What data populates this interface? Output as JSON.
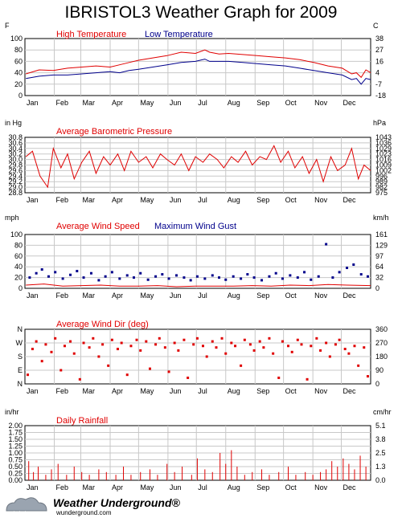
{
  "title": "IBRISTOL3 Weather Graph for 2009",
  "footer": {
    "brand": "Weather Underground",
    "reg": "®",
    "site": "wunderground.com"
  },
  "colors": {
    "red": "#e00000",
    "blue": "#00008b",
    "frame": "#000000",
    "grid": "#c8c8c8"
  },
  "chart_data": [
    {
      "type": "line",
      "left_unit": "F",
      "right_unit": "C",
      "left_ticks": [
        "100",
        "80",
        "60",
        "40",
        "20",
        "0"
      ],
      "right_ticks": [
        "38",
        "27",
        "16",
        "4",
        "-7",
        "-18"
      ],
      "ylim": [
        0,
        100
      ],
      "months": [
        "Jan",
        "Feb",
        "Mar",
        "Apr",
        "May",
        "Jun",
        "Jul",
        "Aug",
        "Sep",
        "Oct",
        "Nov",
        "Dec"
      ],
      "series": [
        {
          "name": "High Temperature",
          "color": "#e00000",
          "x": [
            1,
            15,
            30,
            45,
            60,
            75,
            90,
            100,
            110,
            120,
            135,
            150,
            165,
            180,
            190,
            195,
            205,
            215,
            230,
            245,
            260,
            275,
            290,
            305,
            320,
            335,
            345,
            350,
            355,
            360,
            365
          ],
          "values": [
            38,
            45,
            44,
            48,
            50,
            52,
            50,
            54,
            58,
            62,
            66,
            70,
            76,
            74,
            80,
            76,
            73,
            74,
            72,
            70,
            68,
            66,
            63,
            58,
            52,
            48,
            38,
            40,
            32,
            45,
            40
          ]
        },
        {
          "name": "Low Temperature",
          "color": "#00008b",
          "x": [
            1,
            15,
            30,
            45,
            60,
            75,
            90,
            100,
            110,
            120,
            135,
            150,
            165,
            180,
            190,
            195,
            205,
            215,
            230,
            245,
            260,
            275,
            290,
            305,
            320,
            335,
            345,
            350,
            355,
            360,
            365
          ],
          "values": [
            30,
            34,
            36,
            36,
            38,
            40,
            42,
            40,
            44,
            46,
            50,
            54,
            58,
            60,
            64,
            60,
            60,
            60,
            58,
            56,
            54,
            52,
            48,
            44,
            40,
            36,
            28,
            30,
            20,
            30,
            28
          ]
        }
      ]
    },
    {
      "type": "line",
      "title": "Average Barometric Pressure",
      "left_unit": "in Hg",
      "right_unit": "hPa",
      "left_ticks": [
        "30.8",
        "30.6",
        "30.4",
        "30.2",
        "30.0",
        "29.8",
        "29.6",
        "29.4",
        "29.2",
        "29.0",
        "28.8"
      ],
      "right_ticks": [
        "1043",
        "1036",
        "1029",
        "1023",
        "1016",
        "1009",
        "1002",
        "996",
        "989",
        "982",
        "975"
      ],
      "ylim": [
        28.8,
        30.8
      ],
      "series": [
        {
          "name": "Average Barometric Pressure",
          "color": "#e00000",
          "x": [
            1,
            8,
            16,
            24,
            30,
            38,
            45,
            52,
            60,
            68,
            75,
            83,
            90,
            98,
            105,
            112,
            120,
            128,
            135,
            143,
            150,
            158,
            165,
            173,
            180,
            188,
            195,
            203,
            210,
            218,
            225,
            233,
            240,
            248,
            255,
            263,
            270,
            278,
            285,
            293,
            300,
            308,
            315,
            323,
            330,
            338,
            345,
            352,
            358,
            365
          ],
          "values": [
            30.1,
            30.3,
            29.4,
            29.0,
            30.4,
            29.7,
            30.2,
            29.3,
            29.9,
            30.3,
            29.5,
            30.1,
            29.8,
            30.2,
            29.6,
            30.3,
            29.9,
            30.1,
            29.7,
            30.2,
            30.0,
            29.8,
            30.2,
            29.6,
            30.1,
            29.9,
            30.2,
            30.0,
            29.7,
            30.1,
            29.9,
            30.3,
            29.8,
            30.1,
            30.0,
            30.5,
            29.9,
            30.3,
            29.7,
            30.1,
            29.5,
            30.0,
            29.2,
            30.1,
            29.6,
            29.8,
            30.4,
            29.3,
            29.8,
            29.6
          ]
        }
      ]
    },
    {
      "type": "scatter",
      "left_unit": "mph",
      "right_unit": "km/h",
      "left_ticks": [
        "100",
        "80",
        "60",
        "40",
        "20",
        "0"
      ],
      "right_ticks": [
        "161",
        "129",
        "97",
        "64",
        "32",
        "0"
      ],
      "ylim": [
        0,
        100
      ],
      "series": [
        {
          "name": "Average Wind Speed",
          "color": "#e00000",
          "x": [
            1,
            20,
            40,
            60,
            80,
            100,
            120,
            140,
            160,
            180,
            200,
            220,
            240,
            260,
            280,
            300,
            320,
            340,
            365
          ],
          "values": [
            6,
            8,
            4,
            5,
            6,
            4,
            4,
            5,
            3,
            4,
            4,
            4,
            5,
            4,
            6,
            5,
            7,
            6,
            5
          ]
        },
        {
          "name": "Maximum Wind Gust",
          "color": "#00008b",
          "x": [
            5,
            12,
            18,
            25,
            32,
            40,
            48,
            55,
            62,
            70,
            78,
            85,
            92,
            100,
            108,
            115,
            122,
            130,
            138,
            145,
            152,
            160,
            168,
            175,
            182,
            190,
            198,
            205,
            212,
            220,
            228,
            235,
            242,
            250,
            258,
            265,
            272,
            280,
            288,
            295,
            302,
            310,
            318,
            325,
            332,
            340,
            347,
            355,
            362
          ],
          "values": [
            20,
            28,
            35,
            22,
            30,
            18,
            25,
            32,
            20,
            28,
            15,
            22,
            30,
            18,
            24,
            20,
            28,
            16,
            22,
            26,
            18,
            24,
            20,
            15,
            22,
            18,
            24,
            20,
            16,
            22,
            18,
            26,
            20,
            15,
            22,
            28,
            18,
            24,
            20,
            30,
            16,
            22,
            82,
            20,
            30,
            38,
            44,
            26,
            22
          ]
        }
      ]
    },
    {
      "type": "scatter",
      "title": "Average Wind Dir (deg)",
      "left_ticks": [
        "N",
        "W",
        "S",
        "E",
        "N"
      ],
      "right_ticks": [
        "360",
        "270",
        "180",
        "90",
        "0"
      ],
      "ylim": [
        0,
        360
      ],
      "series": [
        {
          "name": "Average Wind Dir (deg)",
          "color": "#e00000",
          "x": [
            3,
            8,
            12,
            18,
            22,
            28,
            32,
            38,
            42,
            48,
            52,
            58,
            62,
            68,
            72,
            78,
            82,
            88,
            92,
            98,
            102,
            108,
            112,
            118,
            122,
            128,
            132,
            138,
            142,
            148,
            152,
            158,
            162,
            168,
            172,
            178,
            182,
            188,
            192,
            198,
            202,
            208,
            212,
            218,
            222,
            228,
            232,
            238,
            242,
            248,
            252,
            258,
            262,
            268,
            272,
            278,
            282,
            288,
            292,
            298,
            302,
            308,
            312,
            318,
            322,
            328,
            332,
            338,
            342,
            348,
            352,
            358,
            362
          ],
          "values": [
            60,
            230,
            280,
            150,
            260,
            210,
            300,
            90,
            250,
            280,
            200,
            30,
            270,
            240,
            300,
            180,
            260,
            120,
            290,
            230,
            270,
            60,
            250,
            290,
            220,
            280,
            100,
            260,
            300,
            240,
            80,
            270,
            220,
            290,
            40,
            260,
            300,
            250,
            180,
            280,
            240,
            300,
            200,
            270,
            250,
            120,
            290,
            260,
            220,
            280,
            240,
            300,
            200,
            40,
            280,
            250,
            210,
            290,
            260,
            30,
            250,
            300,
            220,
            270,
            180,
            260,
            290,
            230,
            200,
            250,
            120,
            240,
            50
          ]
        }
      ]
    },
    {
      "type": "bar",
      "title": "Daily Rainfall",
      "left_unit": "in/hr",
      "right_unit": "cm/hr",
      "left_ticks": [
        "2.00",
        "1.75",
        "1.50",
        "1.25",
        "1.00",
        "0.75",
        "0.50",
        "0.25",
        "0.00"
      ],
      "right_ticks": [
        "5.1",
        "3.8",
        "2.5",
        "1.3",
        "0.0"
      ],
      "ylim": [
        0,
        2
      ],
      "series": [
        {
          "name": "Daily Rainfall",
          "color": "#e00000",
          "x": [
            4,
            9,
            14,
            22,
            28,
            35,
            44,
            52,
            60,
            68,
            78,
            86,
            96,
            104,
            112,
            122,
            132,
            140,
            150,
            158,
            166,
            176,
            182,
            190,
            198,
            206,
            212,
            218,
            224,
            232,
            240,
            250,
            258,
            268,
            278,
            286,
            296,
            304,
            312,
            318,
            324,
            330,
            336,
            342,
            348,
            354,
            360
          ],
          "values": [
            0.7,
            0.3,
            0.5,
            0.2,
            0.4,
            0.6,
            0.2,
            0.5,
            0.3,
            0.2,
            0.4,
            0.3,
            0.2,
            0.5,
            0.2,
            0.3,
            0.4,
            0.2,
            0.6,
            0.3,
            0.5,
            0.2,
            0.8,
            0.4,
            0.3,
            1.0,
            0.6,
            1.1,
            0.5,
            0.2,
            0.3,
            0.4,
            0.2,
            0.3,
            0.5,
            0.2,
            0.3,
            0.2,
            0.3,
            0.4,
            0.7,
            0.5,
            0.8,
            0.6,
            0.4,
            0.9,
            0.5
          ]
        }
      ]
    }
  ]
}
